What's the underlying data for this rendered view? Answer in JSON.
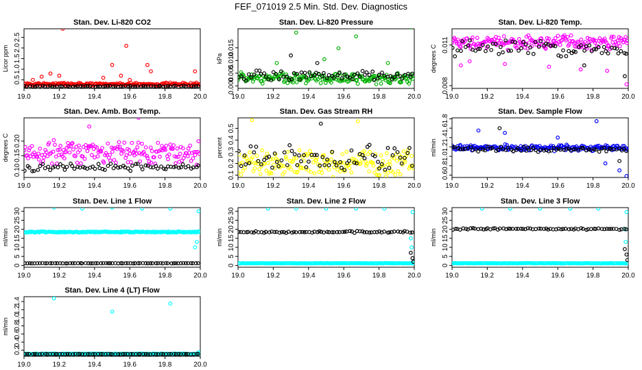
{
  "figure": {
    "title": "FEF_071019  2.5 Min. Std. Dev. Diagnostics",
    "marker": "open-circle",
    "overlay_color": "#000000"
  },
  "chart_data": [
    {
      "type": "scatter",
      "title": "Stan. Dev. Li-820 CO2",
      "xlabel": "",
      "ylabel": "Licor ppm",
      "xlim": [
        19.0,
        20.0
      ],
      "ylim": [
        0.1,
        2.9
      ],
      "xticks": [
        "19.0",
        "19.2",
        "19.4",
        "19.6",
        "19.8",
        "20.0"
      ],
      "yticks": [
        "0.5",
        "1.0",
        "1.5",
        "2.0",
        "2.5"
      ],
      "series": [
        {
          "color": "#ff0000",
          "base": 0.3,
          "spread": 0.08,
          "spikes": [
            [
              19.05,
              0.5
            ],
            [
              19.1,
              0.65
            ],
            [
              19.15,
              0.8
            ],
            [
              19.2,
              0.7
            ],
            [
              19.22,
              2.9
            ],
            [
              19.45,
              0.6
            ],
            [
              19.5,
              1.2
            ],
            [
              19.55,
              0.7
            ],
            [
              19.58,
              2.1
            ],
            [
              19.6,
              0.5
            ],
            [
              19.7,
              1.2
            ],
            [
              19.72,
              0.9
            ],
            [
              19.97,
              0.9
            ]
          ]
        },
        {
          "color": "#000000",
          "base": 0.2,
          "spread": 0.03,
          "spikes": []
        }
      ]
    },
    {
      "type": "scatter",
      "title": "Stan. Dev. Li-820 Pressure",
      "xlabel": "",
      "ylabel": "kPa",
      "xlim": [
        19.0,
        20.0
      ],
      "ylim": [
        -0.001,
        0.0225
      ],
      "xticks": [
        "19.0",
        "19.2",
        "19.4",
        "19.6",
        "19.8",
        "20.0"
      ],
      "yticks": [
        "0.000",
        "0.005",
        "0.010",
        "0.015"
      ],
      "series": [
        {
          "color": "#00b000",
          "base": 0.003,
          "spread": 0.0025,
          "spikes": [
            [
              19.22,
              0.009
            ],
            [
              19.33,
              0.021
            ],
            [
              19.49,
              0.0105
            ],
            [
              19.57,
              0.0148
            ],
            [
              19.67,
              0.0195
            ],
            [
              19.85,
              0.009
            ],
            [
              19.98,
              0.023
            ]
          ]
        },
        {
          "color": "#000000",
          "base": 0.004,
          "spread": 0.0025,
          "spikes": [
            [
              19.3,
              0.012
            ],
            [
              19.45,
              0.009
            ]
          ]
        }
      ]
    },
    {
      "type": "scatter",
      "title": "Stan. Dev. Li-820 Temp.",
      "xlabel": "",
      "ylabel": "degrees C",
      "xlim": [
        19.0,
        20.0
      ],
      "ylim": [
        0.0078,
        0.0122
      ],
      "xticks": [
        "19.0",
        "19.2",
        "19.4",
        "19.6",
        "19.8",
        "20.0"
      ],
      "yticks": [
        "0.008",
        "0.011"
      ],
      "series": [
        {
          "color": "#ff00ff",
          "base": 0.0112,
          "spread": 0.0006,
          "spikes": [
            [
              19.05,
              0.0095
            ],
            [
              19.1,
              0.0098
            ],
            [
              19.3,
              0.0096
            ],
            [
              19.55,
              0.0094
            ],
            [
              19.73,
              0.0092
            ],
            [
              19.88,
              0.0091
            ],
            [
              19.99,
              0.0081
            ]
          ]
        },
        {
          "color": "#000000",
          "base": 0.0108,
          "spread": 0.0007,
          "spikes": [
            [
              19.75,
              0.0095
            ],
            [
              19.98,
              0.0087
            ]
          ]
        }
      ]
    },
    {
      "type": "scatter",
      "title": "Stan. Dev. Amb. Box Temp.",
      "xlabel": "",
      "ylabel": "degrees C",
      "xlim": [
        19.0,
        20.0
      ],
      "ylim": [
        0.075,
        0.28
      ],
      "xticks": [
        "19.0",
        "19.2",
        "19.4",
        "19.6",
        "19.8",
        "20.0"
      ],
      "yticks": [
        "0.10",
        "0.15",
        "0.20"
      ],
      "series": [
        {
          "color": "#ff00ff",
          "base": 0.16,
          "spread": 0.045,
          "spikes": [
            [
              19.65,
              0.28
            ],
            [
              19.37,
              0.25
            ]
          ]
        },
        {
          "color": "#000000",
          "base": 0.11,
          "spread": 0.015,
          "spikes": []
        }
      ]
    },
    {
      "type": "scatter",
      "title": "Stan. Dev. Gas Stream RH",
      "xlabel": "",
      "ylabel": "percent",
      "xlim": [
        19.0,
        20.0
      ],
      "ylim": [
        0.08,
        0.59
      ],
      "xticks": [
        "19.0",
        "19.2",
        "19.4",
        "19.6",
        "19.8",
        "20.0"
      ],
      "yticks": [
        "0.1",
        "0.2",
        "0.3",
        "0.4",
        "0.5"
      ],
      "series": [
        {
          "color": "#ffff00",
          "base": 0.2,
          "spread": 0.13,
          "spikes": [
            [
              19.08,
              0.57
            ],
            [
              19.68,
              0.56
            ]
          ]
        },
        {
          "color": "#000000",
          "base": 0.25,
          "spread": 0.13,
          "spikes": [
            [
              19.47,
              0.54
            ]
          ]
        }
      ]
    },
    {
      "type": "scatter",
      "title": "Stan. Dev. Sample Flow",
      "xlabel": "",
      "ylabel": "ml/min",
      "xlim": [
        19.0,
        20.0
      ],
      "ylim": [
        0.55,
        1.82
      ],
      "xticks": [
        "19.0",
        "19.2",
        "19.4",
        "19.6",
        "19.8",
        "20.0"
      ],
      "yticks": [
        "0.6",
        "0.8",
        "1.0",
        "1.2",
        "1.4",
        "1.6",
        "1.8"
      ],
      "series": [
        {
          "color": "#0000ff",
          "base": 1.18,
          "spread": 0.08,
          "spikes": [
            [
              19.15,
              1.55
            ],
            [
              19.3,
              1.5
            ],
            [
              19.6,
              1.4
            ],
            [
              19.82,
              1.75
            ],
            [
              19.87,
              0.85
            ],
            [
              19.95,
              0.7
            ],
            [
              19.99,
              0.58
            ]
          ]
        },
        {
          "color": "#000000",
          "base": 1.15,
          "spread": 0.07,
          "spikes": [
            [
              19.27,
              1.6
            ],
            [
              19.95,
              0.9
            ]
          ]
        }
      ]
    },
    {
      "type": "scatter",
      "title": "Stan. Dev. Line 1 Flow",
      "xlabel": "",
      "ylabel": "ml/min",
      "xlim": [
        19.0,
        20.0
      ],
      "ylim": [
        -1,
        32
      ],
      "xticks": [
        "19.0",
        "19.2",
        "19.4",
        "19.6",
        "19.8",
        "20.0"
      ],
      "yticks": [
        "0",
        "5",
        "10",
        "15",
        "20",
        "25",
        "30"
      ],
      "series": [
        {
          "color": "#00ffff",
          "base": 18.5,
          "spread": 0.4,
          "spikes": [
            [
              19.17,
              32
            ],
            [
              19.33,
              31.5
            ],
            [
              19.5,
              32
            ],
            [
              19.67,
              31.5
            ],
            [
              19.83,
              31.5
            ],
            [
              19.98,
              13
            ],
            [
              19.97,
              10
            ],
            [
              19.99,
              30
            ]
          ]
        },
        {
          "color": "#000000",
          "base": 1.2,
          "spread": 0.1,
          "spikes": []
        }
      ]
    },
    {
      "type": "scatter",
      "title": "Stan. Dev. Line 2 Flow",
      "xlabel": "",
      "ylabel": "ml/min",
      "xlim": [
        19.0,
        20.0
      ],
      "ylim": [
        -1,
        32
      ],
      "xticks": [
        "19.0",
        "19.2",
        "19.4",
        "19.6",
        "19.8",
        "20.0"
      ],
      "yticks": [
        "0",
        "5",
        "10",
        "15",
        "20",
        "25",
        "30"
      ],
      "series": [
        {
          "color": "#00ffff",
          "base": 1.2,
          "spread": 0.15,
          "spikes": [
            [
              19.17,
              31.5
            ],
            [
              19.33,
              31.5
            ],
            [
              19.5,
              31.5
            ],
            [
              19.67,
              31.5
            ],
            [
              19.83,
              31.5
            ],
            [
              19.99,
              29.5
            ],
            [
              19.98,
              15
            ],
            [
              19.985,
              10
            ]
          ]
        },
        {
          "color": "#000000",
          "base": 18.5,
          "spread": 0.6,
          "spikes": [
            [
              19.98,
              7
            ],
            [
              19.99,
              4
            ],
            [
              19.995,
              2
            ]
          ]
        }
      ]
    },
    {
      "type": "scatter",
      "title": "Stan. Dev. Line 3 Flow",
      "xlabel": "",
      "ylabel": "ml/min",
      "xlim": [
        19.0,
        20.0
      ],
      "ylim": [
        -1,
        32
      ],
      "xticks": [
        "19.0",
        "19.2",
        "19.4",
        "19.6",
        "19.8",
        "20.0"
      ],
      "yticks": [
        "0",
        "5",
        "10",
        "15",
        "20",
        "25",
        "30"
      ],
      "series": [
        {
          "color": "#00ffff",
          "base": 1.2,
          "spread": 0.15,
          "spikes": [
            [
              19.17,
              31.5
            ],
            [
              19.33,
              31.5
            ],
            [
              19.5,
              31.5
            ],
            [
              19.67,
              31.5
            ],
            [
              19.83,
              31.5
            ],
            [
              19.99,
              29.5
            ],
            [
              19.98,
              20
            ],
            [
              19.985,
              13
            ]
          ]
        },
        {
          "color": "#000000",
          "base": 20.2,
          "spread": 0.6,
          "spikes": [
            [
              19.98,
              9
            ],
            [
              19.99,
              6
            ],
            [
              19.995,
              3
            ]
          ]
        }
      ]
    },
    {
      "type": "scatter",
      "title": "Stan. Dev. Line 4 (LT) Flow",
      "xlabel": "",
      "ylabel": "ml/min",
      "xlim": [
        19.0,
        20.0
      ],
      "ylim": [
        0.05,
        1.52
      ],
      "xticks": [
        "19.0",
        "19.2",
        "19.4",
        "19.6",
        "19.8",
        "20.0"
      ],
      "yticks": [
        "0.2",
        "0.4",
        "0.6",
        "0.8",
        "1.0",
        "1.2",
        "1.4"
      ],
      "series": [
        {
          "color": "#00ffff",
          "base": 0.11,
          "spread": 0.01,
          "spikes": [
            [
              19.17,
              1.48
            ],
            [
              19.5,
              1.15
            ],
            [
              19.83,
              1.35
            ],
            [
              19.99,
              0.15
            ]
          ]
        },
        {
          "color": "#000000",
          "base": 0.105,
          "spread": 0.006,
          "spikes": []
        }
      ]
    }
  ]
}
